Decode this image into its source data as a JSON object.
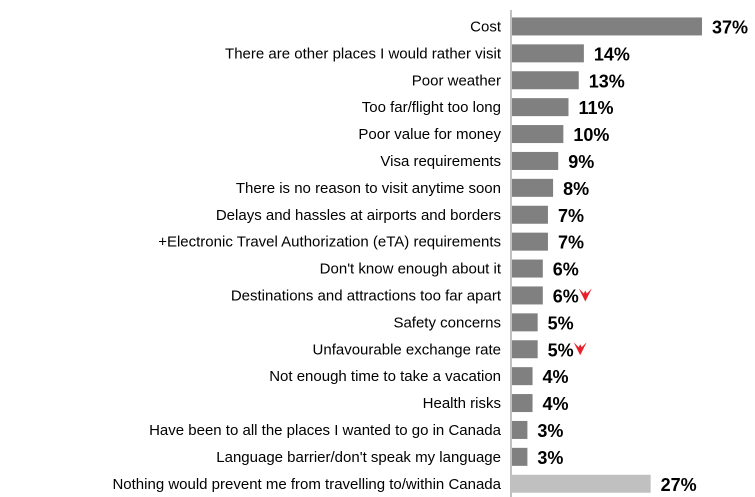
{
  "chart_data": {
    "type": "bar",
    "orientation": "horizontal",
    "title": "",
    "xlabel": "",
    "ylabel": "",
    "grid": false,
    "legend": "none",
    "xlim": [
      0,
      37
    ],
    "categories": [
      "Cost",
      "There are other places I would rather visit",
      "Poor weather",
      "Too far/flight too long",
      "Poor value for money",
      "Visa requirements",
      "There is no reason to visit anytime soon",
      "Delays and hassles at airports and borders",
      "+Electronic Travel Authorization (eTA) requirements",
      "Don't know enough about it",
      "Destinations and attractions too far apart",
      "Safety concerns",
      "Unfavourable exchange rate",
      "Not enough time to take a vacation",
      "Health risks",
      "Have been to all the places I wanted to go in Canada",
      "Language barrier/don't speak my language",
      "Nothing would prevent me from travelling to/within Canada"
    ],
    "values": [
      37,
      14,
      13,
      11,
      10,
      9,
      8,
      7,
      7,
      6,
      6,
      5,
      5,
      4,
      4,
      3,
      3,
      27
    ],
    "value_labels": [
      "37%",
      "14%",
      "13%",
      "11%",
      "10%",
      "9%",
      "8%",
      "7%",
      "7%",
      "6%",
      "6%",
      "5%",
      "5%",
      "4%",
      "4%",
      "3%",
      "3%",
      "27%"
    ],
    "bar_colors": [
      "#808080",
      "#808080",
      "#808080",
      "#808080",
      "#808080",
      "#808080",
      "#808080",
      "#808080",
      "#808080",
      "#808080",
      "#808080",
      "#808080",
      "#808080",
      "#808080",
      "#808080",
      "#808080",
      "#808080",
      "#c0c0c0"
    ],
    "decrease_flags": [
      false,
      false,
      false,
      false,
      false,
      false,
      false,
      false,
      false,
      false,
      true,
      false,
      true,
      false,
      false,
      false,
      false,
      false
    ],
    "decrease_icon": "red-down-arrow-icon",
    "decrease_color": "#e8202a",
    "axis_color": "#808080"
  }
}
